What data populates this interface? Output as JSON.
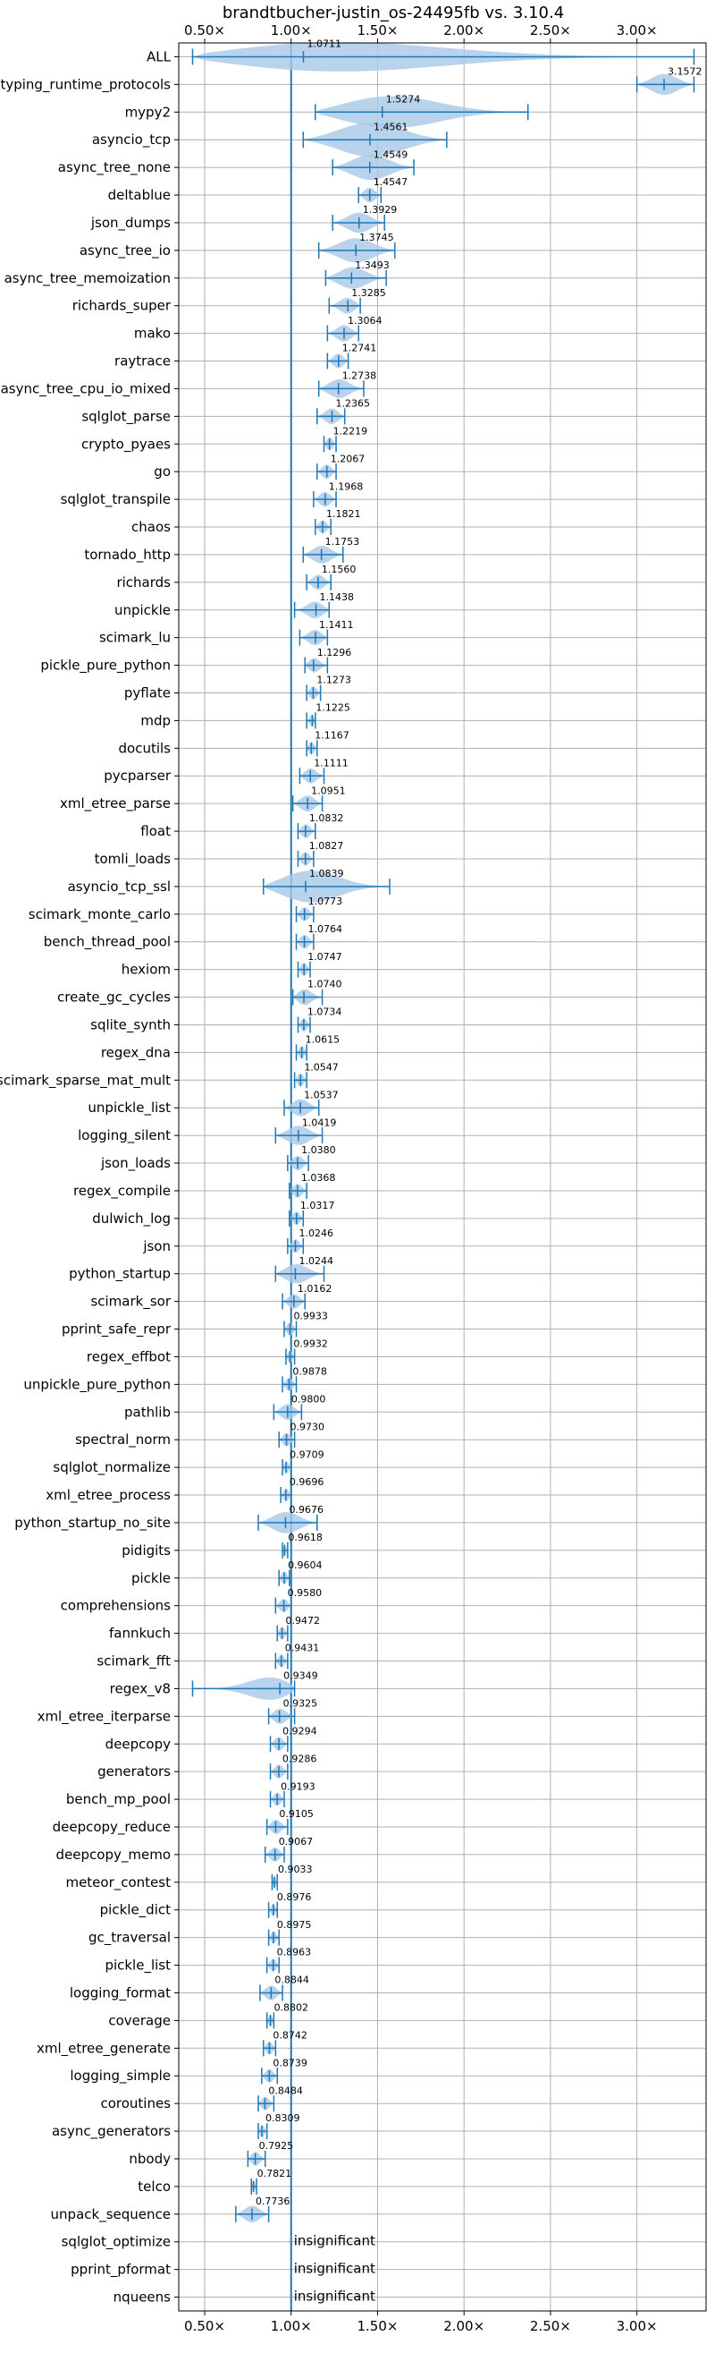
{
  "chart_data": {
    "type": "violin",
    "title": "brandtbucher-justin_os-24495fb vs. 3.10.4",
    "x_ticks": [
      "0.50×",
      "1.00×",
      "1.50×",
      "2.00×",
      "2.50×",
      "3.00×"
    ],
    "x_tick_values": [
      0.5,
      1.0,
      1.5,
      2.0,
      2.5,
      3.0
    ],
    "xlim": [
      0.35,
      3.4
    ],
    "reference_x": 1.0,
    "grid": true,
    "colors": {
      "violin": "#a9c8e8",
      "line": "#1f77b4"
    },
    "benchmarks": [
      {
        "name": "ALL",
        "label": "1.0711",
        "median": 1.0711,
        "min": 0.43,
        "max": 3.33
      },
      {
        "name": "typing_runtime_protocols",
        "label": "3.1572",
        "median": 3.1572,
        "min": 3.0,
        "max": 3.33
      },
      {
        "name": "mypy2",
        "label": "1.5274",
        "median": 1.5274,
        "min": 1.14,
        "max": 2.37
      },
      {
        "name": "asyncio_tcp",
        "label": "1.4561",
        "median": 1.4561,
        "min": 1.07,
        "max": 1.9
      },
      {
        "name": "async_tree_none",
        "label": "1.4549",
        "median": 1.4549,
        "min": 1.24,
        "max": 1.71
      },
      {
        "name": "deltablue",
        "label": "1.4547",
        "median": 1.4547,
        "min": 1.39,
        "max": 1.52
      },
      {
        "name": "json_dumps",
        "label": "1.3929",
        "median": 1.3929,
        "min": 1.24,
        "max": 1.54
      },
      {
        "name": "async_tree_io",
        "label": "1.3745",
        "median": 1.3745,
        "min": 1.16,
        "max": 1.6
      },
      {
        "name": "async_tree_memoization",
        "label": "1.3493",
        "median": 1.3493,
        "min": 1.2,
        "max": 1.55
      },
      {
        "name": "richards_super",
        "label": "1.3285",
        "median": 1.3285,
        "min": 1.22,
        "max": 1.4
      },
      {
        "name": "mako",
        "label": "1.3064",
        "median": 1.3064,
        "min": 1.21,
        "max": 1.39
      },
      {
        "name": "raytrace",
        "label": "1.2741",
        "median": 1.2741,
        "min": 1.21,
        "max": 1.33
      },
      {
        "name": "async_tree_cpu_io_mixed",
        "label": "1.2738",
        "median": 1.2738,
        "min": 1.16,
        "max": 1.42
      },
      {
        "name": "sqlglot_parse",
        "label": "1.2365",
        "median": 1.2365,
        "min": 1.15,
        "max": 1.31
      },
      {
        "name": "crypto_pyaes",
        "label": "1.2219",
        "median": 1.2219,
        "min": 1.19,
        "max": 1.26
      },
      {
        "name": "go",
        "label": "1.2067",
        "median": 1.2067,
        "min": 1.15,
        "max": 1.26
      },
      {
        "name": "sqlglot_transpile",
        "label": "1.1968",
        "median": 1.1968,
        "min": 1.13,
        "max": 1.26
      },
      {
        "name": "chaos",
        "label": "1.1821",
        "median": 1.1821,
        "min": 1.14,
        "max": 1.23
      },
      {
        "name": "tornado_http",
        "label": "1.1753",
        "median": 1.1753,
        "min": 1.07,
        "max": 1.3
      },
      {
        "name": "richards",
        "label": "1.1560",
        "median": 1.156,
        "min": 1.09,
        "max": 1.23
      },
      {
        "name": "unpickle",
        "label": "1.1438",
        "median": 1.1438,
        "min": 1.02,
        "max": 1.22
      },
      {
        "name": "scimark_lu",
        "label": "1.1411",
        "median": 1.1411,
        "min": 1.05,
        "max": 1.21
      },
      {
        "name": "pickle_pure_python",
        "label": "1.1296",
        "median": 1.1296,
        "min": 1.08,
        "max": 1.21
      },
      {
        "name": "pyflate",
        "label": "1.1273",
        "median": 1.1273,
        "min": 1.09,
        "max": 1.17
      },
      {
        "name": "mdp",
        "label": "1.1225",
        "median": 1.1225,
        "min": 1.09,
        "max": 1.14
      },
      {
        "name": "docutils",
        "label": "1.1167",
        "median": 1.1167,
        "min": 1.09,
        "max": 1.15
      },
      {
        "name": "pycparser",
        "label": "1.1111",
        "median": 1.1111,
        "min": 1.05,
        "max": 1.19
      },
      {
        "name": "xml_etree_parse",
        "label": "1.0951",
        "median": 1.0951,
        "min": 1.01,
        "max": 1.18
      },
      {
        "name": "float",
        "label": "1.0832",
        "median": 1.0832,
        "min": 1.04,
        "max": 1.14
      },
      {
        "name": "tomli_loads",
        "label": "1.0827",
        "median": 1.0827,
        "min": 1.04,
        "max": 1.13
      },
      {
        "name": "asyncio_tcp_ssl",
        "label": "1.0839",
        "median": 1.0839,
        "min": 0.84,
        "max": 1.57
      },
      {
        "name": "scimark_monte_carlo",
        "label": "1.0773",
        "median": 1.0773,
        "min": 1.03,
        "max": 1.13
      },
      {
        "name": "bench_thread_pool",
        "label": "1.0764",
        "median": 1.0764,
        "min": 1.03,
        "max": 1.13
      },
      {
        "name": "hexiom",
        "label": "1.0747",
        "median": 1.0747,
        "min": 1.04,
        "max": 1.11
      },
      {
        "name": "create_gc_cycles",
        "label": "1.0740",
        "median": 1.074,
        "min": 1.01,
        "max": 1.18
      },
      {
        "name": "sqlite_synth",
        "label": "1.0734",
        "median": 1.0734,
        "min": 1.04,
        "max": 1.11
      },
      {
        "name": "regex_dna",
        "label": "1.0615",
        "median": 1.0615,
        "min": 1.03,
        "max": 1.09
      },
      {
        "name": "scimark_sparse_mat_mult",
        "label": "1.0547",
        "median": 1.0547,
        "min": 1.02,
        "max": 1.09
      },
      {
        "name": "unpickle_list",
        "label": "1.0537",
        "median": 1.0537,
        "min": 0.96,
        "max": 1.16
      },
      {
        "name": "logging_silent",
        "label": "1.0419",
        "median": 1.0419,
        "min": 0.91,
        "max": 1.18
      },
      {
        "name": "json_loads",
        "label": "1.0380",
        "median": 1.038,
        "min": 0.98,
        "max": 1.1
      },
      {
        "name": "regex_compile",
        "label": "1.0368",
        "median": 1.0368,
        "min": 0.99,
        "max": 1.09
      },
      {
        "name": "dulwich_log",
        "label": "1.0317",
        "median": 1.0317,
        "min": 0.99,
        "max": 1.07
      },
      {
        "name": "json",
        "label": "1.0246",
        "median": 1.0246,
        "min": 0.98,
        "max": 1.07
      },
      {
        "name": "python_startup",
        "label": "1.0244",
        "median": 1.0244,
        "min": 0.91,
        "max": 1.19
      },
      {
        "name": "scimark_sor",
        "label": "1.0162",
        "median": 1.0162,
        "min": 0.95,
        "max": 1.08
      },
      {
        "name": "pprint_safe_repr",
        "label": "0.9933",
        "median": 0.9933,
        "min": 0.96,
        "max": 1.03
      },
      {
        "name": "regex_effbot",
        "label": "0.9932",
        "median": 0.9932,
        "min": 0.97,
        "max": 1.02
      },
      {
        "name": "unpickle_pure_python",
        "label": "0.9878",
        "median": 0.9878,
        "min": 0.95,
        "max": 1.03
      },
      {
        "name": "pathlib",
        "label": "0.9800",
        "median": 0.98,
        "min": 0.9,
        "max": 1.06
      },
      {
        "name": "spectral_norm",
        "label": "0.9730",
        "median": 0.973,
        "min": 0.93,
        "max": 1.02
      },
      {
        "name": "sqlglot_normalize",
        "label": "0.9709",
        "median": 0.9709,
        "min": 0.95,
        "max": 1.0
      },
      {
        "name": "xml_etree_process",
        "label": "0.9696",
        "median": 0.9696,
        "min": 0.94,
        "max": 1.0
      },
      {
        "name": "python_startup_no_site",
        "label": "0.9676",
        "median": 0.9676,
        "min": 0.81,
        "max": 1.15
      },
      {
        "name": "pidigits",
        "label": "0.9618",
        "median": 0.9618,
        "min": 0.95,
        "max": 0.98
      },
      {
        "name": "pickle",
        "label": "0.9604",
        "median": 0.9604,
        "min": 0.93,
        "max": 0.99
      },
      {
        "name": "comprehensions",
        "label": "0.9580",
        "median": 0.958,
        "min": 0.91,
        "max": 1.0
      },
      {
        "name": "fannkuch",
        "label": "0.9472",
        "median": 0.9472,
        "min": 0.92,
        "max": 0.98
      },
      {
        "name": "scimark_fft",
        "label": "0.9431",
        "median": 0.9431,
        "min": 0.91,
        "max": 0.98
      },
      {
        "name": "regex_v8",
        "label": "0.9349",
        "median": 0.9349,
        "min": 0.43,
        "max": 1.02
      },
      {
        "name": "xml_etree_iterparse",
        "label": "0.9325",
        "median": 0.9325,
        "min": 0.87,
        "max": 1.02
      },
      {
        "name": "deepcopy",
        "label": "0.9294",
        "median": 0.9294,
        "min": 0.88,
        "max": 0.98
      },
      {
        "name": "generators",
        "label": "0.9286",
        "median": 0.9286,
        "min": 0.88,
        "max": 0.98
      },
      {
        "name": "bench_mp_pool",
        "label": "0.9193",
        "median": 0.9193,
        "min": 0.88,
        "max": 0.96
      },
      {
        "name": "deepcopy_reduce",
        "label": "0.9105",
        "median": 0.9105,
        "min": 0.86,
        "max": 0.98
      },
      {
        "name": "deepcopy_memo",
        "label": "0.9067",
        "median": 0.9067,
        "min": 0.85,
        "max": 0.96
      },
      {
        "name": "meteor_contest",
        "label": "0.9033",
        "median": 0.9033,
        "min": 0.89,
        "max": 0.92
      },
      {
        "name": "pickle_dict",
        "label": "0.8976",
        "median": 0.8976,
        "min": 0.87,
        "max": 0.92
      },
      {
        "name": "gc_traversal",
        "label": "0.8975",
        "median": 0.8975,
        "min": 0.87,
        "max": 0.93
      },
      {
        "name": "pickle_list",
        "label": "0.8963",
        "median": 0.8963,
        "min": 0.86,
        "max": 0.93
      },
      {
        "name": "logging_format",
        "label": "0.8844",
        "median": 0.8844,
        "min": 0.82,
        "max": 0.95
      },
      {
        "name": "coverage",
        "label": "0.8802",
        "median": 0.8802,
        "min": 0.86,
        "max": 0.9
      },
      {
        "name": "xml_etree_generate",
        "label": "0.8742",
        "median": 0.8742,
        "min": 0.84,
        "max": 0.91
      },
      {
        "name": "logging_simple",
        "label": "0.8739",
        "median": 0.8739,
        "min": 0.83,
        "max": 0.92
      },
      {
        "name": "coroutines",
        "label": "0.8484",
        "median": 0.8484,
        "min": 0.81,
        "max": 0.9
      },
      {
        "name": "async_generators",
        "label": "0.8309",
        "median": 0.8309,
        "min": 0.81,
        "max": 0.86
      },
      {
        "name": "nbody",
        "label": "0.7925",
        "median": 0.7925,
        "min": 0.75,
        "max": 0.85
      },
      {
        "name": "telco",
        "label": "0.7821",
        "median": 0.7821,
        "min": 0.77,
        "max": 0.8
      },
      {
        "name": "unpack_sequence",
        "label": "0.7736",
        "median": 0.7736,
        "min": 0.68,
        "max": 0.87
      },
      {
        "name": "sqlglot_optimize",
        "label": "insignificant",
        "median": null,
        "min": null,
        "max": null
      },
      {
        "name": "pprint_pformat",
        "label": "insignificant",
        "median": null,
        "min": null,
        "max": null
      },
      {
        "name": "nqueens",
        "label": "insignificant",
        "median": null,
        "min": null,
        "max": null
      }
    ]
  }
}
